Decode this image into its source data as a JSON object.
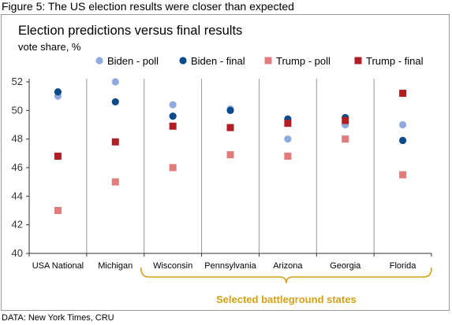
{
  "figure_caption": "Figure 5: The US election results were closer than expected",
  "source": "DATA: New York Times, CRU",
  "colors": {
    "biden_poll": "#8eaadf",
    "biden_final": "#0b4a8b",
    "trump_poll": "#e07c7c",
    "trump_final": "#b01e24",
    "bracket": "#d4a017",
    "axis": "#333333",
    "separator": "#999999"
  },
  "chart_data": {
    "type": "scatter",
    "title": "Election predictions versus final results",
    "ylabel": "vote share,  %",
    "categories": [
      "USA National",
      "Michigan",
      "Wisconsin",
      "Pennsylvania",
      "Arizona",
      "Georgia",
      "Florida"
    ],
    "ylim": [
      40,
      52
    ],
    "yticks": [
      40,
      42,
      44,
      46,
      48,
      50,
      52
    ],
    "legend_position": "top",
    "series": [
      {
        "name": "Biden - poll",
        "marker": "circle",
        "color_key": "biden_poll",
        "values": [
          51.0,
          52.0,
          50.4,
          50.1,
          48.0,
          49.0,
          49.0
        ]
      },
      {
        "name": "Biden - final",
        "marker": "circle",
        "color_key": "biden_final",
        "values": [
          51.3,
          50.6,
          49.6,
          50.0,
          49.4,
          49.5,
          47.9
        ]
      },
      {
        "name": "Trump - poll",
        "marker": "square",
        "color_key": "trump_poll",
        "values": [
          43.0,
          45.0,
          46.0,
          46.9,
          46.8,
          48.0,
          45.5
        ]
      },
      {
        "name": "Trump - final",
        "marker": "square",
        "color_key": "trump_final",
        "values": [
          46.8,
          47.8,
          48.9,
          48.8,
          49.1,
          49.3,
          51.2
        ]
      }
    ],
    "annotations": [
      {
        "text": "Selected battleground states",
        "spans_categories": [
          "Wisconsin",
          "Florida"
        ]
      }
    ]
  }
}
